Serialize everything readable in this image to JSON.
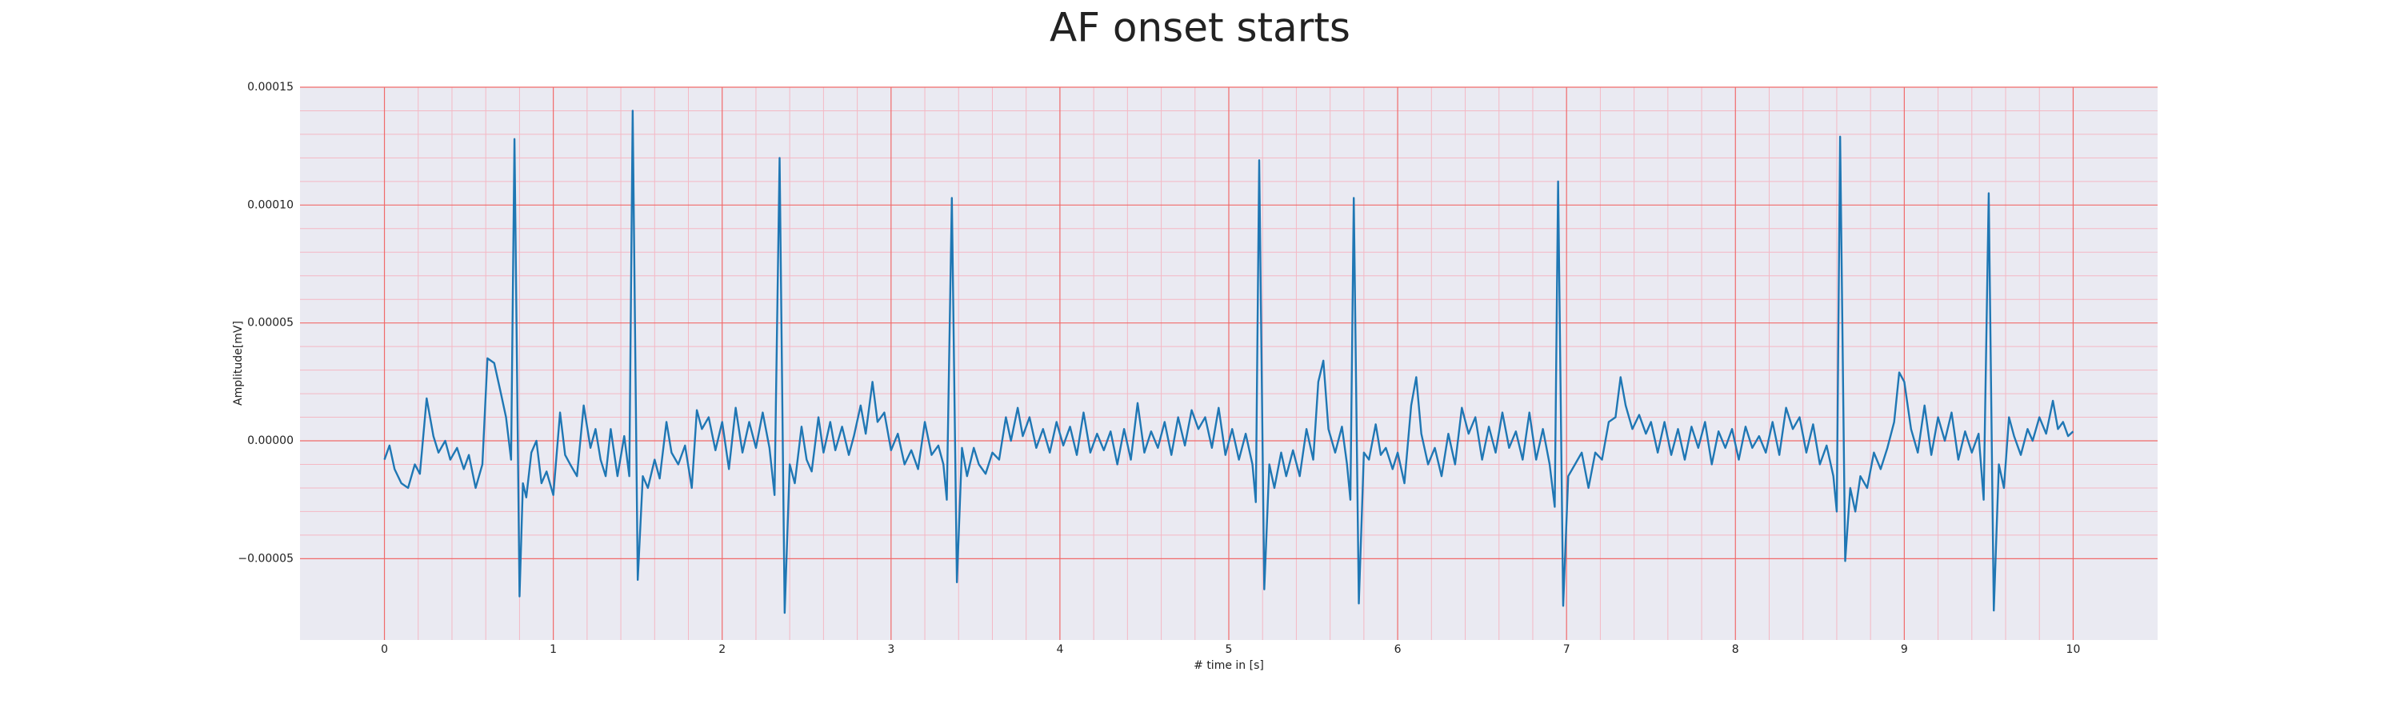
{
  "chart_data": {
    "type": "line",
    "title": "AF onset starts",
    "xlabel": "# time in [s]",
    "ylabel": "Amplitude[mV]",
    "color": "#1f77b4",
    "grid": true,
    "minor_grid": true,
    "xlim": [
      -0.5,
      10.5
    ],
    "xticks": [
      0,
      1,
      2,
      3,
      4,
      5,
      6,
      7,
      8,
      9,
      10
    ],
    "ylim": [
      -8.45e-05,
      0.00015
    ],
    "yticks": [
      {
        "value": -5e-05,
        "label": "−0.00005"
      },
      {
        "value": 0,
        "label": "0.00000"
      },
      {
        "value": 5e-05,
        "label": "0.00005"
      },
      {
        "value": 0.0001,
        "label": "0.00010"
      },
      {
        "value": 0.00015,
        "label": "0.00015"
      }
    ],
    "x": [
      0,
      0.03,
      0.06,
      0.1,
      0.14,
      0.18,
      0.21,
      0.25,
      0.29,
      0.32,
      0.36,
      0.39,
      0.43,
      0.47,
      0.5,
      0.54,
      0.58,
      0.61,
      0.65,
      0.69,
      0.72,
      0.75,
      0.77,
      0.8,
      0.82,
      0.84,
      0.87,
      0.9,
      0.93,
      0.96,
      1.0,
      1.04,
      1.07,
      1.1,
      1.14,
      1.18,
      1.22,
      1.25,
      1.28,
      1.31,
      1.34,
      1.38,
      1.42,
      1.45,
      1.47,
      1.5,
      1.53,
      1.56,
      1.6,
      1.63,
      1.67,
      1.7,
      1.74,
      1.78,
      1.82,
      1.85,
      1.88,
      1.92,
      1.96,
      2.0,
      2.04,
      2.08,
      2.12,
      2.16,
      2.2,
      2.24,
      2.28,
      2.31,
      2.34,
      2.37,
      2.4,
      2.43,
      2.47,
      2.5,
      2.53,
      2.57,
      2.6,
      2.64,
      2.67,
      2.71,
      2.75,
      2.78,
      2.82,
      2.85,
      2.89,
      2.92,
      2.96,
      3.0,
      3.04,
      3.08,
      3.12,
      3.16,
      3.2,
      3.24,
      3.28,
      3.31,
      3.33,
      3.36,
      3.39,
      3.42,
      3.45,
      3.49,
      3.52,
      3.56,
      3.6,
      3.64,
      3.68,
      3.71,
      3.75,
      3.78,
      3.82,
      3.86,
      3.9,
      3.94,
      3.98,
      4.02,
      4.06,
      4.1,
      4.14,
      4.18,
      4.22,
      4.26,
      4.3,
      4.34,
      4.38,
      4.42,
      4.46,
      4.5,
      4.54,
      4.58,
      4.62,
      4.66,
      4.7,
      4.74,
      4.78,
      4.82,
      4.86,
      4.9,
      4.94,
      4.98,
      5.02,
      5.06,
      5.1,
      5.14,
      5.16,
      5.18,
      5.21,
      5.24,
      5.27,
      5.31,
      5.34,
      5.38,
      5.42,
      5.46,
      5.5,
      5.53,
      5.56,
      5.59,
      5.63,
      5.67,
      5.7,
      5.72,
      5.74,
      5.77,
      5.8,
      5.83,
      5.87,
      5.9,
      5.93,
      5.97,
      6.0,
      6.04,
      6.08,
      6.11,
      6.14,
      6.18,
      6.22,
      6.26,
      6.3,
      6.34,
      6.38,
      6.42,
      6.46,
      6.5,
      6.54,
      6.58,
      6.62,
      6.66,
      6.7,
      6.74,
      6.78,
      6.82,
      6.86,
      6.9,
      6.93,
      6.95,
      6.98,
      7.01,
      7.05,
      7.09,
      7.13,
      7.17,
      7.21,
      7.25,
      7.29,
      7.32,
      7.35,
      7.39,
      7.43,
      7.47,
      7.5,
      7.54,
      7.58,
      7.62,
      7.66,
      7.7,
      7.74,
      7.78,
      7.82,
      7.86,
      7.9,
      7.94,
      7.98,
      8.02,
      8.06,
      8.1,
      8.14,
      8.18,
      8.22,
      8.26,
      8.3,
      8.34,
      8.38,
      8.42,
      8.46,
      8.5,
      8.54,
      8.58,
      8.6,
      8.62,
      8.65,
      8.68,
      8.71,
      8.74,
      8.78,
      8.82,
      8.86,
      8.9,
      8.94,
      8.97,
      9.0,
      9.04,
      9.08,
      9.12,
      9.16,
      9.2,
      9.24,
      9.28,
      9.32,
      9.36,
      9.4,
      9.44,
      9.47,
      9.5,
      9.53,
      9.56,
      9.59,
      9.62,
      9.65,
      9.69,
      9.73,
      9.76,
      9.8,
      9.84,
      9.88,
      9.91,
      9.94,
      9.97,
      10.0
    ],
    "values": [
      -8e-06,
      -2e-06,
      -1.2e-05,
      -1.8e-05,
      -2e-05,
      -1e-05,
      -1.4e-05,
      1.8e-05,
      2e-06,
      -5e-06,
      0,
      -8e-06,
      -3e-06,
      -1.2e-05,
      -6e-06,
      -2e-05,
      -1e-05,
      3.5e-05,
      3.3e-05,
      2e-05,
      1e-05,
      -8e-06,
      0.000128,
      -6.6e-05,
      -1.8e-05,
      -2.4e-05,
      -5e-06,
      0,
      -1.8e-05,
      -1.3e-05,
      -2.3e-05,
      1.2e-05,
      -6e-06,
      -1e-05,
      -1.5e-05,
      1.5e-05,
      -3e-06,
      5e-06,
      -8e-06,
      -1.5e-05,
      5e-06,
      -1.5e-05,
      2e-06,
      -1.5e-05,
      0.00014,
      -5.9e-05,
      -1.5e-05,
      -2e-05,
      -8e-06,
      -1.6e-05,
      8e-06,
      -5e-06,
      -1e-05,
      -2e-06,
      -2e-05,
      1.3e-05,
      5e-06,
      1e-05,
      -4e-06,
      8e-06,
      -1.2e-05,
      1.4e-05,
      -5e-06,
      8e-06,
      -3e-06,
      1.2e-05,
      -3e-06,
      -2.3e-05,
      0.00012,
      -7.3e-05,
      -1e-05,
      -1.8e-05,
      6e-06,
      -8e-06,
      -1.3e-05,
      1e-05,
      -5e-06,
      8e-06,
      -4e-06,
      6e-06,
      -6e-06,
      2e-06,
      1.5e-05,
      3e-06,
      2.5e-05,
      8e-06,
      1.2e-05,
      -4e-06,
      3e-06,
      -1e-05,
      -4e-06,
      -1.2e-05,
      8e-06,
      -6e-06,
      -2e-06,
      -1e-05,
      -2.5e-05,
      0.000103,
      -6e-05,
      -3e-06,
      -1.5e-05,
      -3e-06,
      -1e-05,
      -1.4e-05,
      -5e-06,
      -8e-06,
      1e-05,
      0,
      1.4e-05,
      2e-06,
      1e-05,
      -3e-06,
      5e-06,
      -5e-06,
      8e-06,
      -2e-06,
      6e-06,
      -6e-06,
      1.2e-05,
      -5e-06,
      3e-06,
      -4e-06,
      4e-06,
      -1e-05,
      5e-06,
      -8e-06,
      1.6e-05,
      -5e-06,
      4e-06,
      -3e-06,
      8e-06,
      -6e-06,
      1e-05,
      -2e-06,
      1.3e-05,
      5e-06,
      1e-05,
      -3e-06,
      1.4e-05,
      -6e-06,
      5e-06,
      -8e-06,
      3e-06,
      -1e-05,
      -2.6e-05,
      0.000119,
      -6.3e-05,
      -1e-05,
      -2e-05,
      -5e-06,
      -1.5e-05,
      -4e-06,
      -1.5e-05,
      5e-06,
      -8e-06,
      2.5e-05,
      3.4e-05,
      5e-06,
      -5e-06,
      6e-06,
      -1e-05,
      -2.5e-05,
      0.000103,
      -6.9e-05,
      -5e-06,
      -8e-06,
      7e-06,
      -6e-06,
      -3e-06,
      -1.2e-05,
      -5e-06,
      -1.8e-05,
      1.5e-05,
      2.7e-05,
      3e-06,
      -1e-05,
      -3e-06,
      -1.5e-05,
      3e-06,
      -1e-05,
      1.4e-05,
      3e-06,
      1e-05,
      -8e-06,
      6e-06,
      -5e-06,
      1.2e-05,
      -3e-06,
      4e-06,
      -8e-06,
      1.2e-05,
      -8e-06,
      5e-06,
      -1e-05,
      -2.8e-05,
      0.00011,
      -7e-05,
      -1.5e-05,
      -1e-05,
      -5e-06,
      -2e-05,
      -5e-06,
      -8e-06,
      8e-06,
      1e-05,
      2.7e-05,
      1.5e-05,
      5e-06,
      1.1e-05,
      3e-06,
      8e-06,
      -5e-06,
      8e-06,
      -6e-06,
      5e-06,
      -8e-06,
      6e-06,
      -3e-06,
      8e-06,
      -1e-05,
      4e-06,
      -3e-06,
      5e-06,
      -8e-06,
      6e-06,
      -3e-06,
      2e-06,
      -5e-06,
      8e-06,
      -6e-06,
      1.4e-05,
      5e-06,
      1e-05,
      -5e-06,
      7e-06,
      -1e-05,
      -2e-06,
      -1.5e-05,
      -3e-05,
      0.000129,
      -5.1e-05,
      -2e-05,
      -3e-05,
      -1.5e-05,
      -2e-05,
      -5e-06,
      -1.2e-05,
      -3e-06,
      8e-06,
      2.9e-05,
      2.5e-05,
      5e-06,
      -5e-06,
      1.5e-05,
      -6e-06,
      1e-05,
      0,
      1.2e-05,
      -8e-06,
      4e-06,
      -5e-06,
      3e-06,
      -2.5e-05,
      0.000105,
      -7.2e-05,
      -1e-05,
      -2e-05,
      1e-05,
      2e-06,
      -6e-06,
      5e-06,
      0,
      1e-05,
      3e-06,
      1.7e-05,
      5e-06,
      8e-06,
      2e-06,
      4e-06
    ]
  }
}
